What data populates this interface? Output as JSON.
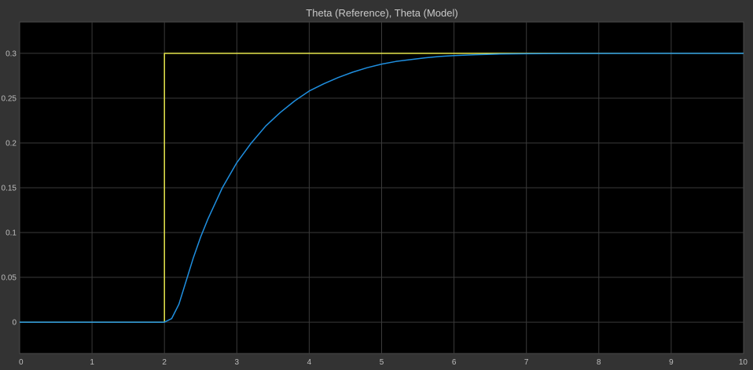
{
  "title": "Theta (Reference), Theta (Model)",
  "colors": {
    "background": "#333333",
    "plot_background": "#000000",
    "grid": "#3a3a3a",
    "axes_text": "#bdbdbd",
    "title_text": "#c8c8c8"
  },
  "chart_data": {
    "type": "line",
    "title": "Theta (Reference), Theta (Model)",
    "xlabel": "",
    "ylabel": "",
    "xlim": [
      0,
      10
    ],
    "ylim": [
      -0.035,
      0.335
    ],
    "x_ticks": [
      0,
      1,
      2,
      3,
      4,
      5,
      6,
      7,
      8,
      9,
      10
    ],
    "x_tick_labels": [
      "0",
      "1",
      "2",
      "3",
      "4",
      "5",
      "6",
      "7",
      "8",
      "9",
      "10"
    ],
    "y_ticks": [
      0,
      0.05,
      0.1,
      0.15,
      0.2,
      0.25,
      0.3
    ],
    "y_tick_labels": [
      "0",
      "0.05",
      "0.1",
      "0.15",
      "0.2",
      "0.25",
      "0.3"
    ],
    "grid": true,
    "legend": "none",
    "series": [
      {
        "color": "#e6e64d",
        "x": [
          0,
          2,
          2,
          10
        ],
        "y": [
          0,
          0,
          0.3,
          0.3
        ]
      },
      {
        "color": "#1f8fe0",
        "x": [
          0,
          2,
          2.1,
          2.2,
          2.3,
          2.4,
          2.5,
          2.6,
          2.8,
          3.0,
          3.2,
          3.4,
          3.6,
          3.8,
          4.0,
          4.2,
          4.4,
          4.6,
          4.8,
          5.0,
          5.2,
          5.4,
          5.6,
          5.8,
          6.0,
          6.3,
          6.6,
          7.0,
          7.5,
          8.0,
          8.5,
          9.0,
          9.5,
          10
        ],
        "y": [
          0,
          0,
          0.004,
          0.02,
          0.046,
          0.072,
          0.095,
          0.115,
          0.15,
          0.178,
          0.2,
          0.219,
          0.234,
          0.247,
          0.258,
          0.266,
          0.273,
          0.279,
          0.284,
          0.288,
          0.291,
          0.293,
          0.295,
          0.2965,
          0.2975,
          0.2985,
          0.2992,
          0.2996,
          0.2998,
          0.2999,
          0.3,
          0.3,
          0.3,
          0.3
        ]
      }
    ]
  }
}
